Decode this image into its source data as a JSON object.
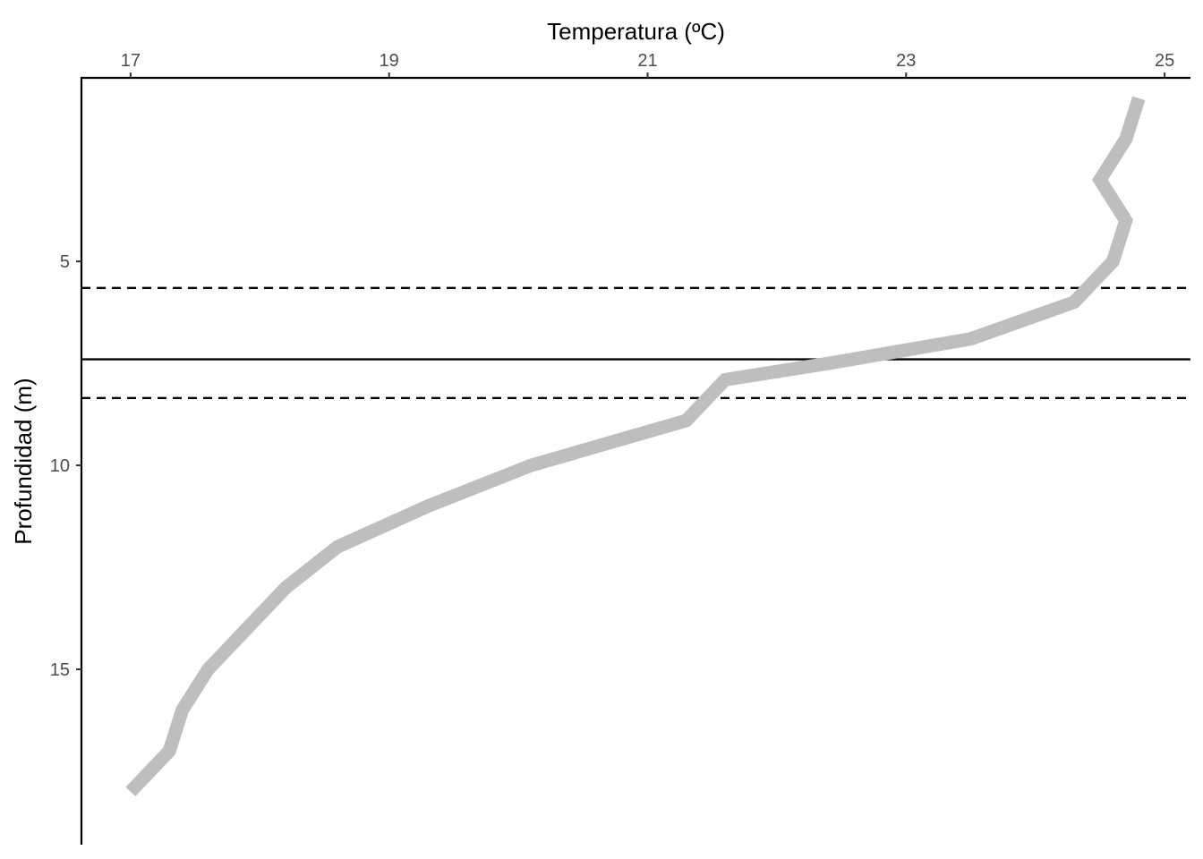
{
  "chart_data": {
    "type": "line",
    "xlabel": "Temperatura (ºC)",
    "ylabel": "Profundidad (m)",
    "x_axis_position": "top",
    "y_axis_reversed": true,
    "xlim": [
      16.62,
      25.2
    ],
    "ylim": [
      0.5,
      19.3
    ],
    "x_ticks": [
      17,
      19,
      21,
      23,
      25
    ],
    "y_ticks": [
      5,
      10,
      15
    ],
    "grid": false,
    "series": [
      {
        "color": "#bebebe",
        "points": [
          {
            "x": 24.8,
            "y": 1.0
          },
          {
            "x": 24.7,
            "y": 2.0
          },
          {
            "x": 24.5,
            "y": 3.0
          },
          {
            "x": 24.7,
            "y": 4.0
          },
          {
            "x": 24.6,
            "y": 5.0
          },
          {
            "x": 24.3,
            "y": 6.0
          },
          {
            "x": 23.5,
            "y": 6.9
          },
          {
            "x": 22.4,
            "y": 7.5
          },
          {
            "x": 21.6,
            "y": 7.9
          },
          {
            "x": 21.3,
            "y": 8.9
          },
          {
            "x": 20.1,
            "y": 10.0
          },
          {
            "x": 19.3,
            "y": 11.0
          },
          {
            "x": 18.6,
            "y": 12.0
          },
          {
            "x": 18.2,
            "y": 13.0
          },
          {
            "x": 17.9,
            "y": 14.0
          },
          {
            "x": 17.6,
            "y": 15.0
          },
          {
            "x": 17.4,
            "y": 16.0
          },
          {
            "x": 17.3,
            "y": 17.0
          },
          {
            "x": 17.0,
            "y": 18.0
          }
        ]
      }
    ],
    "reference_lines": [
      {
        "y": 5.65,
        "style": "dashed",
        "color": "#000000"
      },
      {
        "y": 7.4,
        "style": "solid",
        "color": "#000000"
      },
      {
        "y": 8.35,
        "style": "dashed",
        "color": "#000000"
      }
    ]
  }
}
